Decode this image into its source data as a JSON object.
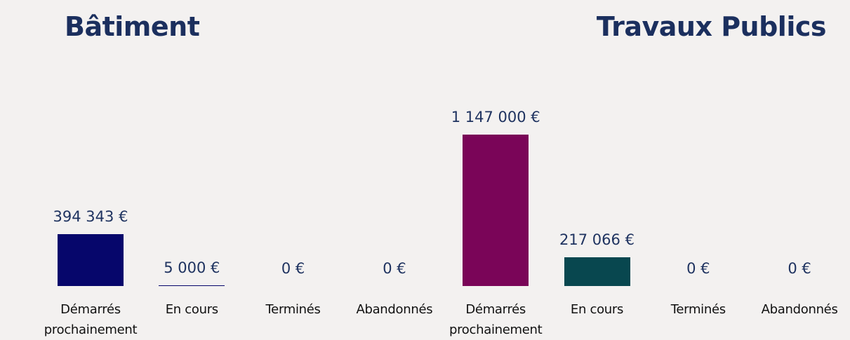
{
  "chart_data": [
    {
      "type": "bar",
      "title": "Bâtiment",
      "categories": [
        "Démarrés prochainement",
        "En cours",
        "Terminés",
        "Abandonnés"
      ],
      "values": [
        394343,
        5000,
        0,
        0
      ],
      "value_labels": [
        "394 343 €",
        "5 000 €",
        "0 €",
        "0 €"
      ],
      "colors": [
        "#06066b",
        "#06066b",
        "#06066b",
        "#06066b"
      ]
    },
    {
      "type": "bar",
      "title": "Travaux Publics",
      "categories": [
        "Démarrés prochainement",
        "En cours",
        "Terminés",
        "Abandonnés"
      ],
      "values": [
        1147000,
        217066,
        0,
        0
      ],
      "value_labels": [
        "1 147 000 €",
        "217 066 €",
        "0 €",
        "0 €"
      ],
      "colors": [
        "#7a0558",
        "#08474f",
        "#08474f",
        "#08474f"
      ]
    }
  ]
}
